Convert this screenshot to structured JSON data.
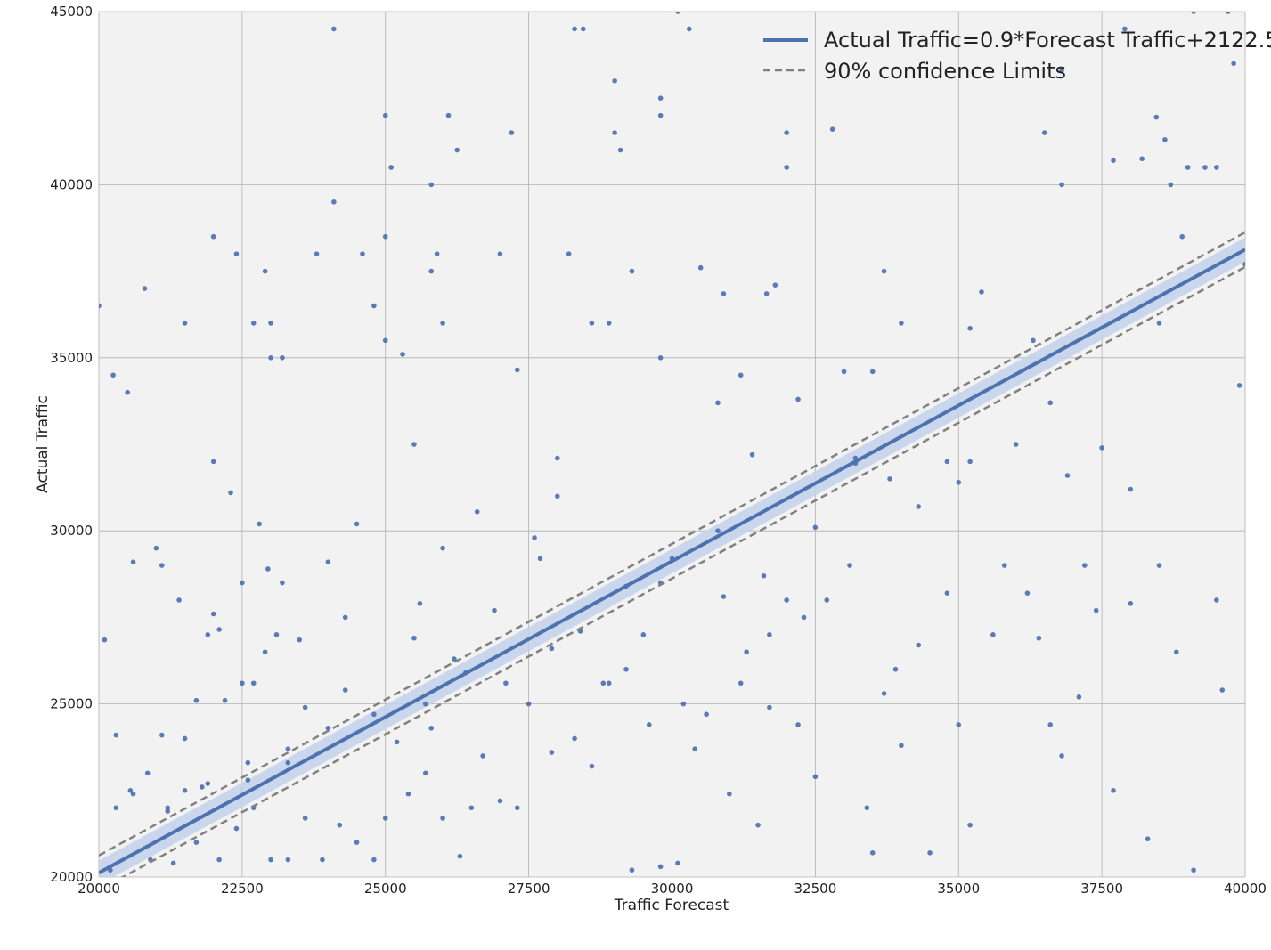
{
  "chart_data": {
    "type": "scatter",
    "xlabel": "Traffic Forecast",
    "ylabel": "Actual Traffic",
    "xlim": [
      20000,
      40000
    ],
    "ylim": [
      20000,
      45000
    ],
    "xticks": [
      20000,
      22500,
      25000,
      27500,
      30000,
      32500,
      35000,
      37500,
      40000
    ],
    "yticks": [
      20000,
      25000,
      30000,
      35000,
      40000,
      45000
    ],
    "xtick_labels": [
      "20000",
      "22500",
      "25000",
      "27500",
      "30000",
      "32500",
      "35000",
      "37500",
      "40000"
    ],
    "ytick_labels": [
      "20000",
      "25000",
      "30000",
      "35000",
      "40000",
      "45000"
    ],
    "grid": true,
    "legend_position": "top-right",
    "regression": {
      "label": "Actual Traffic=0.9*Forecast Traffic+2122.5",
      "slope": 0.9,
      "intercept": 2122.5,
      "confidence_label": "90% confidence Limits",
      "confidence_offset": 500,
      "band_offset": 350
    },
    "colors": {
      "points": "#4a6eb1",
      "line": "#4c72b0",
      "band": "#c3d1ea",
      "confidence": "#808080",
      "background": "#f2f2f2",
      "grid": "#b0b0b0"
    },
    "points": [
      [
        20000,
        36500
      ],
      [
        20100,
        26850
      ],
      [
        20200,
        20200
      ],
      [
        20250,
        34500
      ],
      [
        20300,
        22000
      ],
      [
        20500,
        34000
      ],
      [
        20550,
        22500
      ],
      [
        20600,
        29100
      ],
      [
        20800,
        37000
      ],
      [
        20850,
        23000
      ],
      [
        21000,
        29500
      ],
      [
        21100,
        24100
      ],
      [
        21100,
        29000
      ],
      [
        21300,
        20400
      ],
      [
        21400,
        28000
      ],
      [
        21500,
        36000
      ],
      [
        21500,
        24000
      ],
      [
        21700,
        21000
      ],
      [
        21900,
        27000
      ],
      [
        22000,
        38500
      ],
      [
        22000,
        27600
      ],
      [
        22000,
        32000
      ],
      [
        22100,
        27150
      ],
      [
        22200,
        25100
      ],
      [
        22300,
        31100
      ],
      [
        22400,
        38000
      ],
      [
        22500,
        28500
      ],
      [
        22500,
        25600
      ],
      [
        22600,
        22800
      ],
      [
        22700,
        36000
      ],
      [
        22700,
        25600
      ],
      [
        22800,
        30200
      ],
      [
        22900,
        37500
      ],
      [
        22950,
        28900
      ],
      [
        23000,
        36000
      ],
      [
        23000,
        35000
      ],
      [
        23100,
        27000
      ],
      [
        23200,
        35000
      ],
      [
        23200,
        28500
      ],
      [
        23300,
        23300
      ],
      [
        23500,
        26850
      ],
      [
        23600,
        24900
      ],
      [
        23800,
        38000
      ],
      [
        24000,
        29100
      ],
      [
        24100,
        44500
      ],
      [
        24100,
        39500
      ],
      [
        24300,
        27500
      ],
      [
        24500,
        30200
      ],
      [
        24600,
        38000
      ],
      [
        24800,
        36500
      ],
      [
        25000,
        42000
      ],
      [
        25000,
        38500
      ],
      [
        25000,
        35500
      ],
      [
        25100,
        40500
      ],
      [
        25300,
        35100
      ],
      [
        25500,
        32500
      ],
      [
        25600,
        27900
      ],
      [
        25700,
        25000
      ],
      [
        25800,
        40000
      ],
      [
        25800,
        37500
      ],
      [
        25900,
        38000
      ],
      [
        26000,
        36000
      ],
      [
        26000,
        29500
      ],
      [
        26100,
        42000
      ],
      [
        26250,
        41000
      ],
      [
        26600,
        30550
      ],
      [
        27000,
        38000
      ],
      [
        27200,
        41500
      ],
      [
        27300,
        34650
      ],
      [
        27600,
        29800
      ],
      [
        28000,
        31000
      ],
      [
        28200,
        38000
      ],
      [
        28300,
        44500
      ],
      [
        28450,
        44500
      ],
      [
        28600,
        36000
      ],
      [
        28900,
        36000
      ],
      [
        29000,
        43000
      ],
      [
        29000,
        41500
      ],
      [
        29100,
        41000
      ],
      [
        29300,
        37500
      ],
      [
        29800,
        42000
      ],
      [
        29800,
        42500
      ],
      [
        29800,
        35000
      ],
      [
        30100,
        45000
      ],
      [
        30300,
        44500
      ],
      [
        30500,
        37600
      ],
      [
        30900,
        36850
      ],
      [
        31200,
        34500
      ],
      [
        31650,
        36850
      ],
      [
        31800,
        37100
      ],
      [
        32000,
        41500
      ],
      [
        32000,
        40500
      ],
      [
        32800,
        41600
      ],
      [
        33200,
        32100
      ],
      [
        33700,
        37500
      ],
      [
        34000,
        36000
      ],
      [
        35200,
        35850
      ],
      [
        35400,
        36900
      ],
      [
        36300,
        35500
      ],
      [
        36500,
        41500
      ],
      [
        36800,
        40000
      ],
      [
        36800,
        43300
      ],
      [
        37700,
        40700
      ],
      [
        37900,
        44500
      ],
      [
        38200,
        40750
      ],
      [
        38700,
        40000
      ],
      [
        38900,
        38500
      ],
      [
        39000,
        40500
      ],
      [
        39100,
        45000
      ],
      [
        39300,
        40500
      ],
      [
        39500,
        40500
      ],
      [
        39700,
        45000
      ],
      [
        39800,
        43500
      ],
      [
        40000,
        37700
      ],
      [
        39900,
        34200
      ],
      [
        38500,
        36000
      ],
      [
        38600,
        41300
      ],
      [
        38450,
        41950
      ],
      [
        38000,
        31200
      ],
      [
        37500,
        32400
      ],
      [
        36900,
        31600
      ],
      [
        36600,
        33700
      ],
      [
        36000,
        32500
      ],
      [
        35200,
        32000
      ],
      [
        35000,
        31400
      ],
      [
        34800,
        32000
      ],
      [
        34300,
        30700
      ],
      [
        33800,
        31500
      ],
      [
        33200,
        31950
      ],
      [
        32700,
        28000
      ],
      [
        32300,
        27500
      ],
      [
        32000,
        28000
      ],
      [
        31600,
        28700
      ],
      [
        31200,
        25600
      ],
      [
        30900,
        28100
      ],
      [
        30600,
        24700
      ],
      [
        30200,
        25000
      ],
      [
        29800,
        28500
      ],
      [
        29500,
        27000
      ],
      [
        29200,
        26000
      ],
      [
        28900,
        25600
      ],
      [
        28600,
        23200
      ],
      [
        28300,
        24000
      ],
      [
        27900,
        23600
      ],
      [
        27500,
        25000
      ],
      [
        27300,
        22000
      ],
      [
        27000,
        22200
      ],
      [
        26700,
        23500
      ],
      [
        26500,
        22000
      ],
      [
        26300,
        20600
      ],
      [
        26000,
        21700
      ],
      [
        25800,
        24300
      ],
      [
        25400,
        22400
      ],
      [
        25200,
        23900
      ],
      [
        25000,
        21700
      ],
      [
        24800,
        20500
      ],
      [
        24500,
        21000
      ],
      [
        24200,
        21500
      ],
      [
        23900,
        20500
      ],
      [
        23600,
        21700
      ],
      [
        23300,
        20500
      ],
      [
        23000,
        20500
      ],
      [
        22700,
        22000
      ],
      [
        22400,
        21400
      ],
      [
        22100,
        20500
      ],
      [
        21800,
        22600
      ],
      [
        21500,
        22500
      ],
      [
        21200,
        22000
      ],
      [
        20900,
        20500
      ],
      [
        20600,
        22400
      ],
      [
        29300,
        20200
      ],
      [
        29800,
        20300
      ],
      [
        30100,
        20400
      ],
      [
        31000,
        22400
      ],
      [
        31500,
        21500
      ],
      [
        33500,
        20700
      ],
      [
        34500,
        20700
      ],
      [
        35200,
        21500
      ],
      [
        36800,
        23500
      ],
      [
        37700,
        22500
      ],
      [
        38300,
        21100
      ],
      [
        39100,
        20200
      ],
      [
        38000,
        27900
      ],
      [
        37200,
        29000
      ],
      [
        36200,
        28200
      ],
      [
        35800,
        29000
      ],
      [
        34800,
        28200
      ],
      [
        33900,
        26000
      ],
      [
        33100,
        29000
      ],
      [
        32500,
        30100
      ],
      [
        31700,
        27000
      ],
      [
        30800,
        30000
      ],
      [
        30000,
        29200
      ],
      [
        29200,
        28400
      ],
      [
        28400,
        27100
      ],
      [
        27700,
        29200
      ],
      [
        26900,
        27700
      ],
      [
        26200,
        26300
      ],
      [
        25500,
        26900
      ],
      [
        24800,
        24700
      ],
      [
        24000,
        24300
      ],
      [
        23300,
        23700
      ],
      [
        22600,
        23300
      ],
      [
        21900,
        22700
      ],
      [
        21200,
        21900
      ],
      [
        33500,
        34600
      ],
      [
        34300,
        26700
      ],
      [
        35600,
        27000
      ],
      [
        36600,
        24400
      ],
      [
        37100,
        25200
      ],
      [
        38500,
        29000
      ],
      [
        39500,
        28000
      ],
      [
        30800,
        33700
      ],
      [
        31400,
        32200
      ],
      [
        32200,
        33800
      ],
      [
        33000,
        34600
      ],
      [
        31700,
        24900
      ],
      [
        32200,
        24400
      ],
      [
        33400,
        22000
      ],
      [
        34000,
        23800
      ],
      [
        28000,
        32100
      ],
      [
        27100,
        25600
      ],
      [
        26400,
        25900
      ],
      [
        25700,
        23000
      ],
      [
        27900,
        26600
      ],
      [
        28800,
        25600
      ],
      [
        29600,
        24400
      ],
      [
        30400,
        23700
      ],
      [
        31300,
        26500
      ],
      [
        32500,
        22900
      ],
      [
        33700,
        25300
      ],
      [
        35000,
        24400
      ],
      [
        36400,
        26900
      ],
      [
        37400,
        27700
      ],
      [
        38800,
        26500
      ],
      [
        39600,
        25400
      ],
      [
        20300,
        24100
      ],
      [
        21700,
        25100
      ],
      [
        22900,
        26500
      ],
      [
        24300,
        25400
      ]
    ]
  }
}
